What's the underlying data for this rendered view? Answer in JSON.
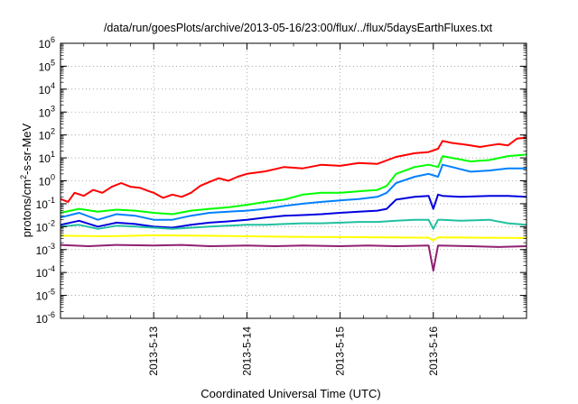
{
  "chart_data": {
    "type": "line",
    "title": "/data/run/goesPlots/archive/2013-05-16/23:00/flux/../flux/5daysEarthFluxes.txt",
    "xlabel": "Coordinated Universal Time (UTC)",
    "ylabel": {
      "base": "protons/cm",
      "sup": "2",
      "rest": "-s-sr-MeV"
    },
    "x_axis": {
      "start": "2013-05-12 00:00",
      "end": "2013-05-17 00:00",
      "units": "days",
      "ticks": [
        {
          "value": 1,
          "label": "2013-5-13"
        },
        {
          "value": 2,
          "label": "2013-5-14"
        },
        {
          "value": 3,
          "label": "2013-5-15"
        },
        {
          "value": 4,
          "label": "2013-5-16"
        }
      ]
    },
    "y_axis": {
      "scale": "log",
      "ylim": [
        1e-06,
        1000000.0
      ],
      "ticks": [
        {
          "value": 1e-06,
          "base": "10",
          "exp": "-6"
        },
        {
          "value": 1e-05,
          "base": "10",
          "exp": "-5"
        },
        {
          "value": 0.0001,
          "base": "10",
          "exp": "-4"
        },
        {
          "value": 0.001,
          "base": "10",
          "exp": "-3"
        },
        {
          "value": 0.01,
          "base": "10",
          "exp": "-2"
        },
        {
          "value": 0.1,
          "base": "10",
          "exp": "-1"
        },
        {
          "value": 1,
          "base": "10",
          "exp": "0"
        },
        {
          "value": 10,
          "base": "10",
          "exp": "1"
        },
        {
          "value": 100,
          "base": "10",
          "exp": "2"
        },
        {
          "value": 1000.0,
          "base": "10",
          "exp": "3"
        },
        {
          "value": 10000.0,
          "base": "10",
          "exp": "4"
        },
        {
          "value": 100000.0,
          "base": "10",
          "exp": "5"
        },
        {
          "value": 1000000.0,
          "base": "10",
          "exp": "6"
        }
      ]
    },
    "grid": true,
    "legend": "none",
    "series": [
      {
        "color": "#ff0000",
        "x": [
          0,
          0.08,
          0.15,
          0.25,
          0.35,
          0.45,
          0.55,
          0.65,
          0.75,
          0.85,
          0.95,
          1.0,
          1.1,
          1.2,
          1.3,
          1.4,
          1.5,
          1.6,
          1.7,
          1.8,
          1.9,
          2.0,
          2.2,
          2.4,
          2.6,
          2.8,
          3.0,
          3.2,
          3.4,
          3.6,
          3.8,
          3.95,
          4.05,
          4.1,
          4.2,
          4.3,
          4.4,
          4.5,
          4.6,
          4.7,
          4.8,
          4.9,
          5.0
        ],
        "y": [
          0.16,
          0.12,
          0.3,
          0.22,
          0.4,
          0.3,
          0.55,
          0.8,
          0.55,
          0.5,
          0.35,
          0.3,
          0.18,
          0.25,
          0.2,
          0.3,
          0.6,
          0.9,
          1.3,
          1.0,
          1.5,
          2.0,
          2.6,
          4.0,
          3.5,
          5.0,
          4.5,
          6.0,
          5.5,
          11,
          16,
          18,
          25,
          55,
          45,
          40,
          35,
          30,
          35,
          40,
          35,
          70,
          75
        ]
      },
      {
        "color": "#00ff00",
        "x": [
          0,
          0.2,
          0.4,
          0.6,
          0.8,
          1.0,
          1.2,
          1.4,
          1.6,
          1.8,
          2.0,
          2.2,
          2.4,
          2.6,
          2.8,
          3.0,
          3.2,
          3.4,
          3.5,
          3.6,
          3.8,
          3.95,
          4.05,
          4.1,
          4.2,
          4.4,
          4.6,
          4.8,
          5.0
        ],
        "y": [
          0.04,
          0.06,
          0.045,
          0.055,
          0.05,
          0.04,
          0.035,
          0.05,
          0.06,
          0.07,
          0.09,
          0.12,
          0.15,
          0.25,
          0.3,
          0.3,
          0.35,
          0.4,
          0.6,
          2.0,
          4.0,
          5.0,
          4.0,
          12,
          10,
          7,
          8,
          12,
          14
        ]
      },
      {
        "color": "#0080ff",
        "x": [
          0,
          0.2,
          0.4,
          0.6,
          0.8,
          1.0,
          1.2,
          1.4,
          1.6,
          1.8,
          2.0,
          2.2,
          2.4,
          2.6,
          2.8,
          3.0,
          3.2,
          3.4,
          3.5,
          3.6,
          3.8,
          3.95,
          4.05,
          4.1,
          4.2,
          4.4,
          4.6,
          4.8,
          5.0
        ],
        "y": [
          0.025,
          0.04,
          0.02,
          0.035,
          0.03,
          0.02,
          0.02,
          0.03,
          0.04,
          0.045,
          0.05,
          0.06,
          0.08,
          0.1,
          0.12,
          0.14,
          0.16,
          0.2,
          0.3,
          0.8,
          1.5,
          2.0,
          1.5,
          5.0,
          4.0,
          2.5,
          2.8,
          3.5,
          3.5
        ]
      },
      {
        "color": "#0000e0",
        "x": [
          0,
          0.2,
          0.4,
          0.6,
          0.8,
          1.0,
          1.2,
          1.4,
          1.6,
          1.8,
          2.0,
          2.2,
          2.4,
          2.6,
          2.8,
          3.0,
          3.2,
          3.4,
          3.5,
          3.6,
          3.8,
          3.95,
          4.0,
          4.05,
          4.1,
          4.3,
          4.6,
          4.8,
          5.0
        ],
        "y": [
          0.012,
          0.018,
          0.01,
          0.015,
          0.013,
          0.01,
          0.009,
          0.012,
          0.015,
          0.017,
          0.02,
          0.025,
          0.03,
          0.032,
          0.035,
          0.04,
          0.045,
          0.05,
          0.06,
          0.15,
          0.2,
          0.22,
          0.06,
          0.25,
          0.22,
          0.2,
          0.22,
          0.22,
          0.2
        ]
      },
      {
        "color": "#20c0a0",
        "x": [
          0,
          0.2,
          0.4,
          0.6,
          0.8,
          1.0,
          1.2,
          1.4,
          1.6,
          1.8,
          2.0,
          2.2,
          2.4,
          2.6,
          2.8,
          3.0,
          3.2,
          3.4,
          3.6,
          3.8,
          3.95,
          4.0,
          4.05,
          4.1,
          4.3,
          4.6,
          4.8,
          5.0
        ],
        "y": [
          0.01,
          0.012,
          0.008,
          0.011,
          0.01,
          0.009,
          0.008,
          0.009,
          0.01,
          0.011,
          0.012,
          0.012,
          0.013,
          0.014,
          0.014,
          0.015,
          0.016,
          0.016,
          0.018,
          0.02,
          0.02,
          0.008,
          0.02,
          0.02,
          0.018,
          0.02,
          0.014,
          0.012
        ]
      },
      {
        "color": "#ffff00",
        "x": [
          0,
          0.5,
          1.0,
          1.5,
          2.0,
          2.5,
          3.0,
          3.5,
          3.95,
          4.0,
          4.05,
          4.5,
          5.0
        ],
        "y": [
          0.004,
          0.0038,
          0.0042,
          0.004,
          0.0038,
          0.0036,
          0.0035,
          0.0034,
          0.0033,
          0.0025,
          0.0034,
          0.0033,
          0.0032
        ]
      },
      {
        "color": "#902070",
        "x": [
          0,
          0.3,
          0.6,
          1.0,
          1.3,
          1.6,
          2.0,
          2.3,
          2.6,
          3.0,
          3.3,
          3.6,
          3.95,
          4.0,
          4.05,
          4.4,
          4.7,
          5.0
        ],
        "y": [
          0.0016,
          0.0014,
          0.0016,
          0.0015,
          0.0016,
          0.0014,
          0.0015,
          0.0014,
          0.0015,
          0.0014,
          0.0015,
          0.0014,
          0.0015,
          0.00012,
          0.0015,
          0.0014,
          0.0013,
          0.0014
        ]
      }
    ]
  }
}
